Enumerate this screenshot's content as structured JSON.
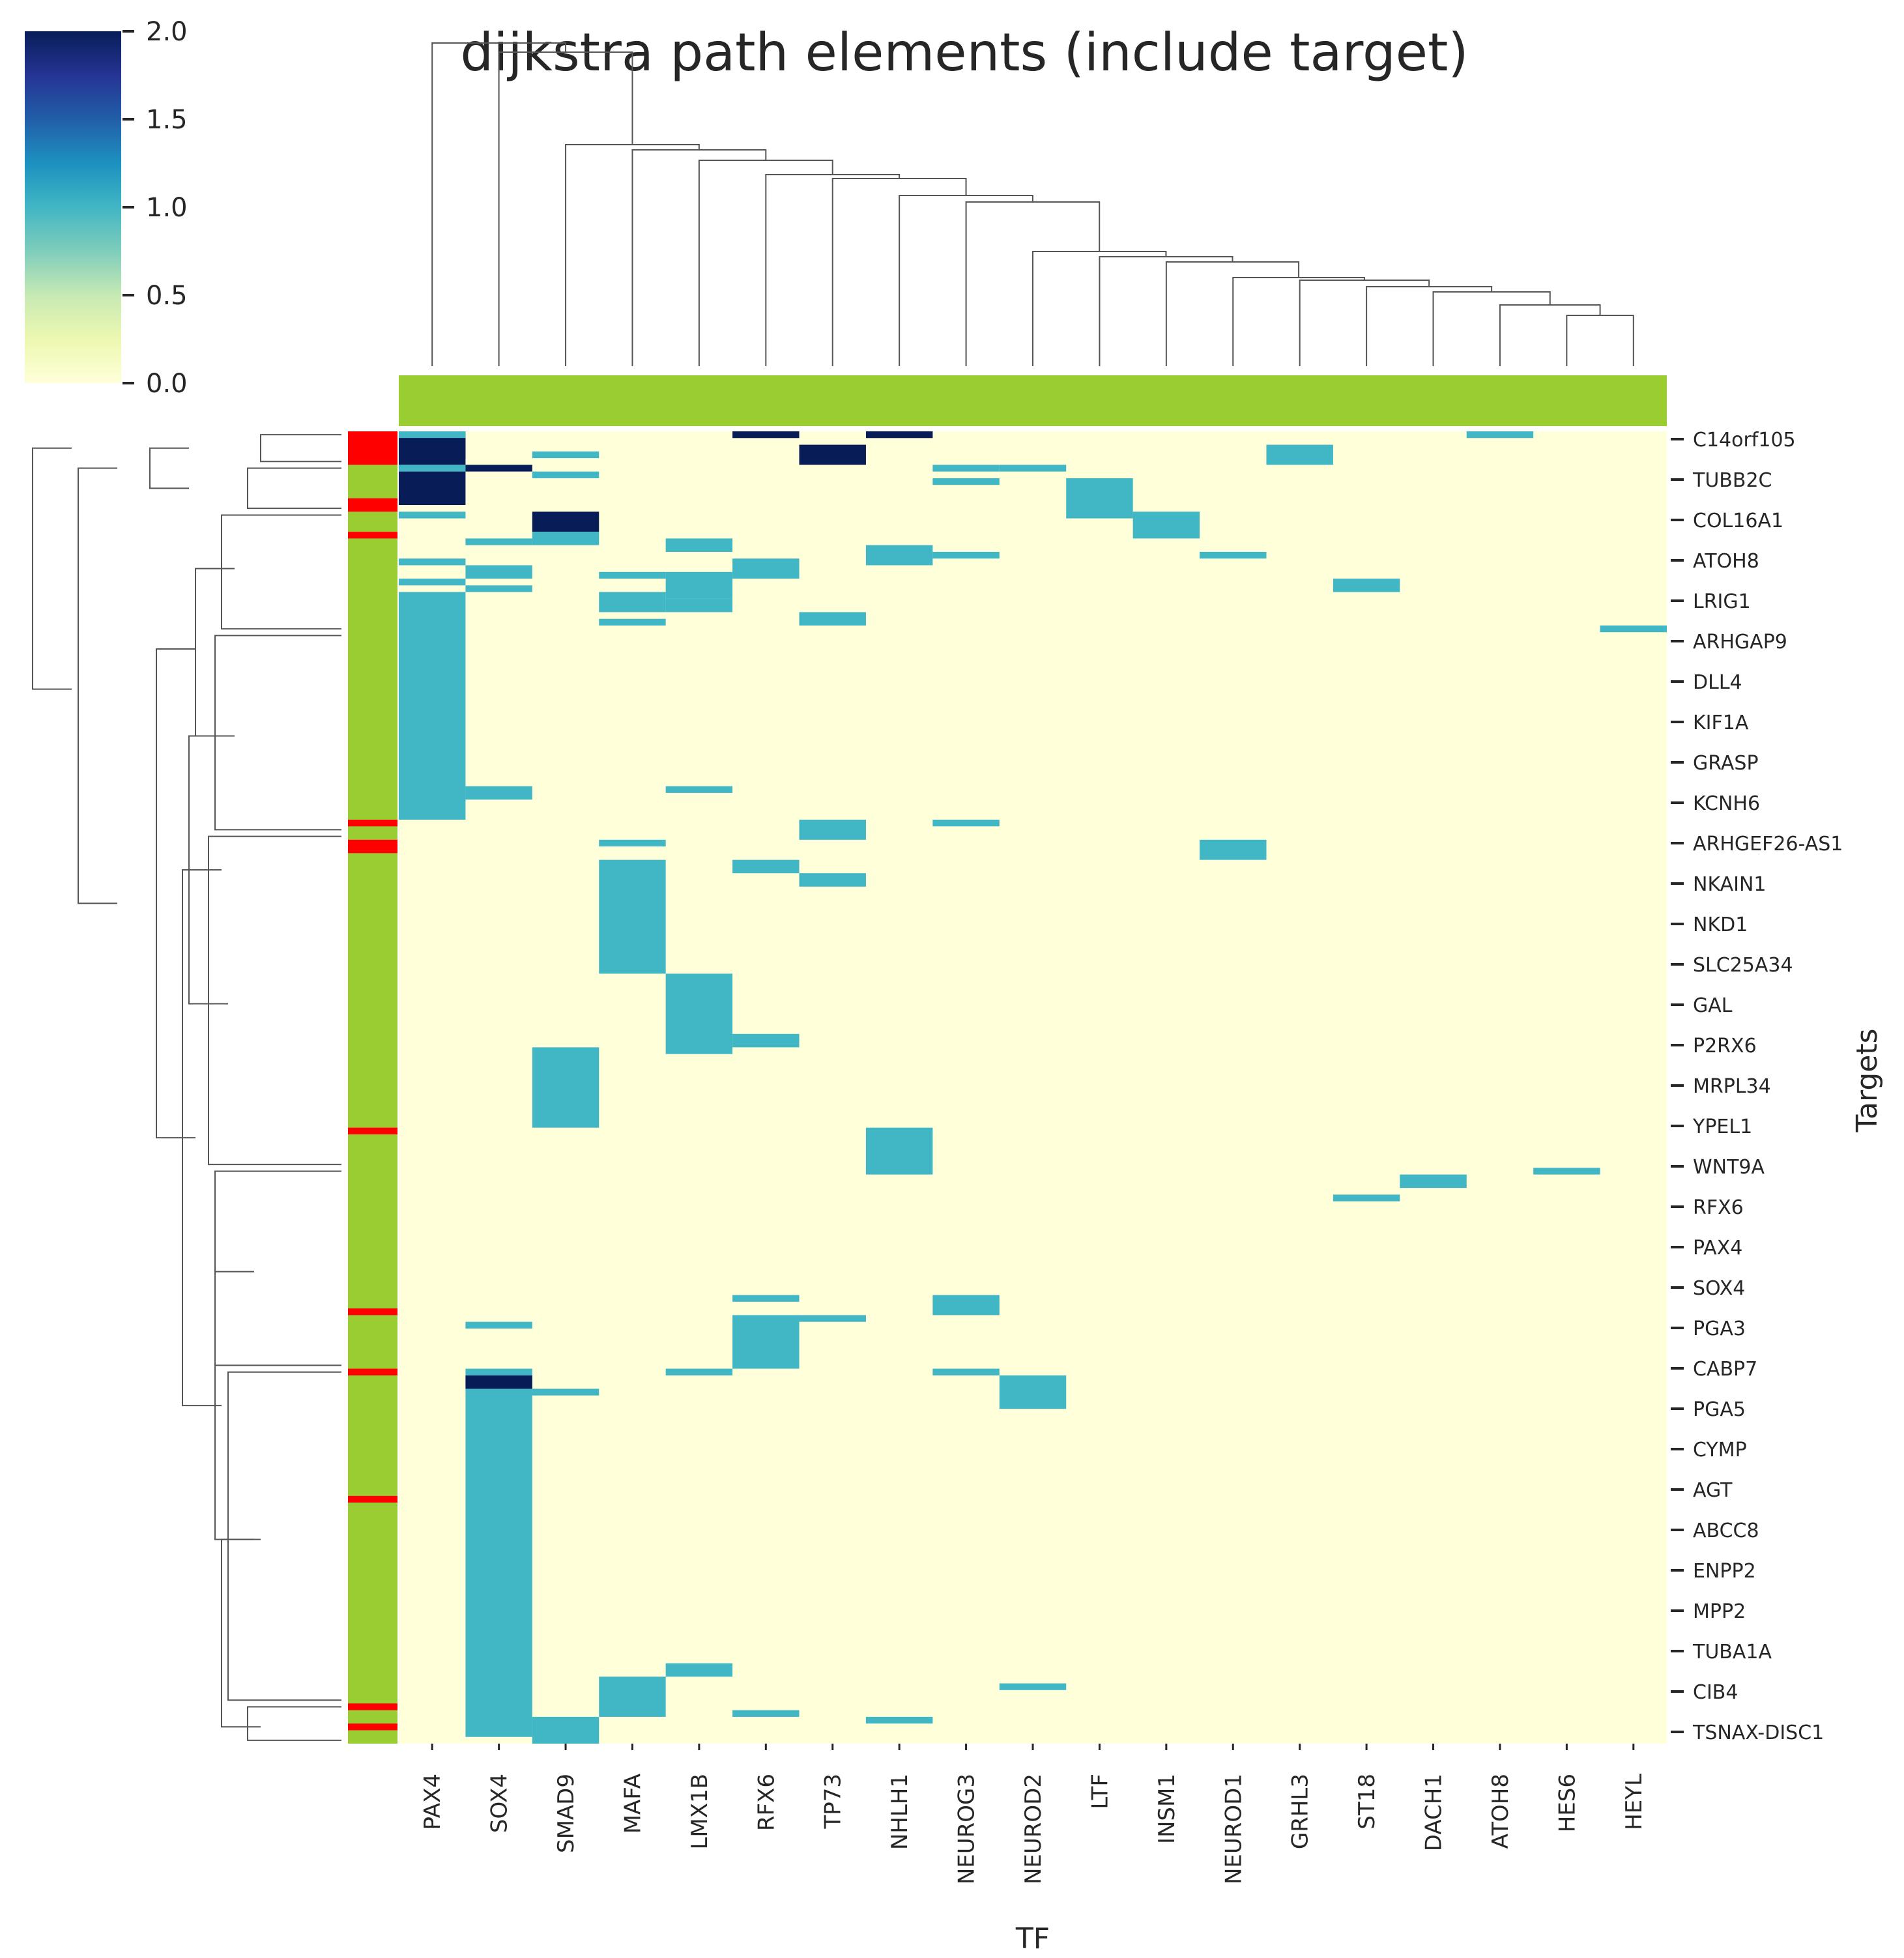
{
  "chart_data": {
    "type": "heatmap",
    "title": "dijkstra path elements (include target)",
    "xlabel": "TF",
    "ylabel": "Targets",
    "colorbar": {
      "colormap": "YlGnBu",
      "min": 0.0,
      "max": 2.0,
      "ticks": [
        "0.0",
        "0.5",
        "1.0",
        "1.5",
        "2.0"
      ]
    },
    "colors": {
      "low": "#ffffd9",
      "mid": "#41b6c4",
      "high": "#081d58",
      "col_color_bar": "#9acd32",
      "row_color_green": "#9acd32",
      "row_color_red": "#ff0000"
    },
    "columns": [
      "PAX4",
      "SOX4",
      "SMAD9",
      "MAFA",
      "LMX1B",
      "RFX6",
      "TP73",
      "NHLH1",
      "NEUROG3",
      "NEUROD2",
      "LTF",
      "INSM1",
      "NEUROD1",
      "GRHL3",
      "ST18",
      "DACH1",
      "ATOH8",
      "HES6",
      "HEYL"
    ],
    "row_tick_labels": [
      "C14orf105",
      "TUBB2C",
      "COL16A1",
      "ATOH8",
      "LRIG1",
      "ARHGAP9",
      "DLL4",
      "KIF1A",
      "GRASP",
      "KCNH6",
      "ARHGEF26-AS1",
      "NKAIN1",
      "NKD1",
      "SLC25A34",
      "GAL",
      "P2RX6",
      "MRPL34",
      "YPEL1",
      "WNT9A",
      "RFX6",
      "PAX4",
      "SOX4",
      "PGA3",
      "CABP7",
      "PGA5",
      "CYMP",
      "AGT",
      "ABCC8",
      "ENPP2",
      "MPP2",
      "TUBA1A",
      "CIB4",
      "TSNAX-DISC1"
    ],
    "n_rows": 196,
    "cells": [
      [
        0,
        0,
        5,
        2
      ],
      [
        0,
        0,
        1,
        1
      ],
      [
        5,
        0,
        1,
        2
      ],
      [
        7,
        0,
        1,
        2
      ],
      [
        16,
        0,
        1,
        1
      ],
      [
        0,
        1,
        3,
        2
      ],
      [
        6,
        2,
        3,
        2
      ],
      [
        13,
        2,
        3,
        1
      ],
      [
        2,
        3,
        1,
        1
      ],
      [
        0,
        5,
        1,
        1
      ],
      [
        1,
        5,
        1,
        2
      ],
      [
        8,
        5,
        1,
        1
      ],
      [
        9,
        5,
        1,
        1
      ],
      [
        2,
        6,
        1,
        1
      ],
      [
        0,
        6,
        5,
        2
      ],
      [
        8,
        7,
        1,
        1
      ],
      [
        10,
        7,
        6,
        1
      ],
      [
        0,
        12,
        1,
        1
      ],
      [
        2,
        12,
        3,
        2
      ],
      [
        11,
        12,
        4,
        1
      ],
      [
        1,
        16,
        1,
        1
      ],
      [
        4,
        16,
        2,
        1
      ],
      [
        2,
        15,
        2,
        1
      ],
      [
        7,
        17,
        3,
        1
      ],
      [
        8,
        18,
        1,
        1
      ],
      [
        12,
        18,
        1,
        1
      ],
      [
        0,
        19,
        1,
        1
      ],
      [
        5,
        19,
        3,
        1
      ],
      [
        1,
        20,
        2,
        1
      ],
      [
        3,
        21,
        1,
        1
      ],
      [
        4,
        21,
        4,
        1
      ],
      [
        0,
        22,
        1,
        1
      ],
      [
        1,
        23,
        1,
        1
      ],
      [
        14,
        22,
        2,
        1
      ],
      [
        0,
        24,
        34,
        1
      ],
      [
        3,
        24,
        3,
        1
      ],
      [
        4,
        25,
        2,
        1
      ],
      [
        6,
        27,
        2,
        1
      ],
      [
        3,
        28,
        1,
        1
      ],
      [
        18,
        29,
        1,
        1
      ],
      [
        1,
        53,
        2,
        1
      ],
      [
        4,
        53,
        1,
        1
      ],
      [
        6,
        58,
        3,
        1
      ],
      [
        8,
        58,
        1,
        1
      ],
      [
        3,
        61,
        1,
        1
      ],
      [
        12,
        61,
        3,
        1
      ],
      [
        3,
        64,
        17,
        1
      ],
      [
        5,
        64,
        2,
        1
      ],
      [
        6,
        66,
        2,
        1
      ],
      [
        4,
        81,
        12,
        1
      ],
      [
        5,
        90,
        2,
        1
      ],
      [
        2,
        92,
        12,
        1
      ],
      [
        7,
        104,
        7,
        1
      ],
      [
        17,
        110,
        1,
        1
      ],
      [
        15,
        111,
        2,
        1
      ],
      [
        14,
        114,
        1,
        1
      ],
      [
        5,
        129,
        1,
        1
      ],
      [
        8,
        129,
        3,
        1
      ],
      [
        1,
        133,
        1,
        1
      ],
      [
        6,
        132,
        1,
        1
      ],
      [
        5,
        132,
        8,
        1
      ],
      [
        1,
        140,
        1,
        1
      ],
      [
        4,
        140,
        1,
        1
      ],
      [
        8,
        140,
        1,
        1
      ],
      [
        1,
        141,
        54,
        1
      ],
      [
        1,
        141,
        2,
        2
      ],
      [
        2,
        143,
        1,
        1
      ],
      [
        9,
        141,
        5,
        1
      ],
      [
        4,
        184,
        2,
        1
      ],
      [
        3,
        186,
        6,
        1
      ],
      [
        9,
        187,
        1,
        1
      ],
      [
        5,
        191,
        1,
        1
      ],
      [
        2,
        192,
        4,
        1
      ],
      [
        7,
        192,
        1,
        1
      ]
    ],
    "row_colors_red": [
      [
        0,
        5
      ],
      [
        10,
        2
      ],
      [
        15,
        1
      ],
      [
        58,
        1
      ],
      [
        61,
        2
      ],
      [
        104,
        1
      ],
      [
        131,
        1
      ],
      [
        140,
        1
      ],
      [
        159,
        1
      ],
      [
        190,
        1
      ],
      [
        193,
        1
      ]
    ],
    "row_colors_base": "green",
    "col_colors_all": "green"
  }
}
